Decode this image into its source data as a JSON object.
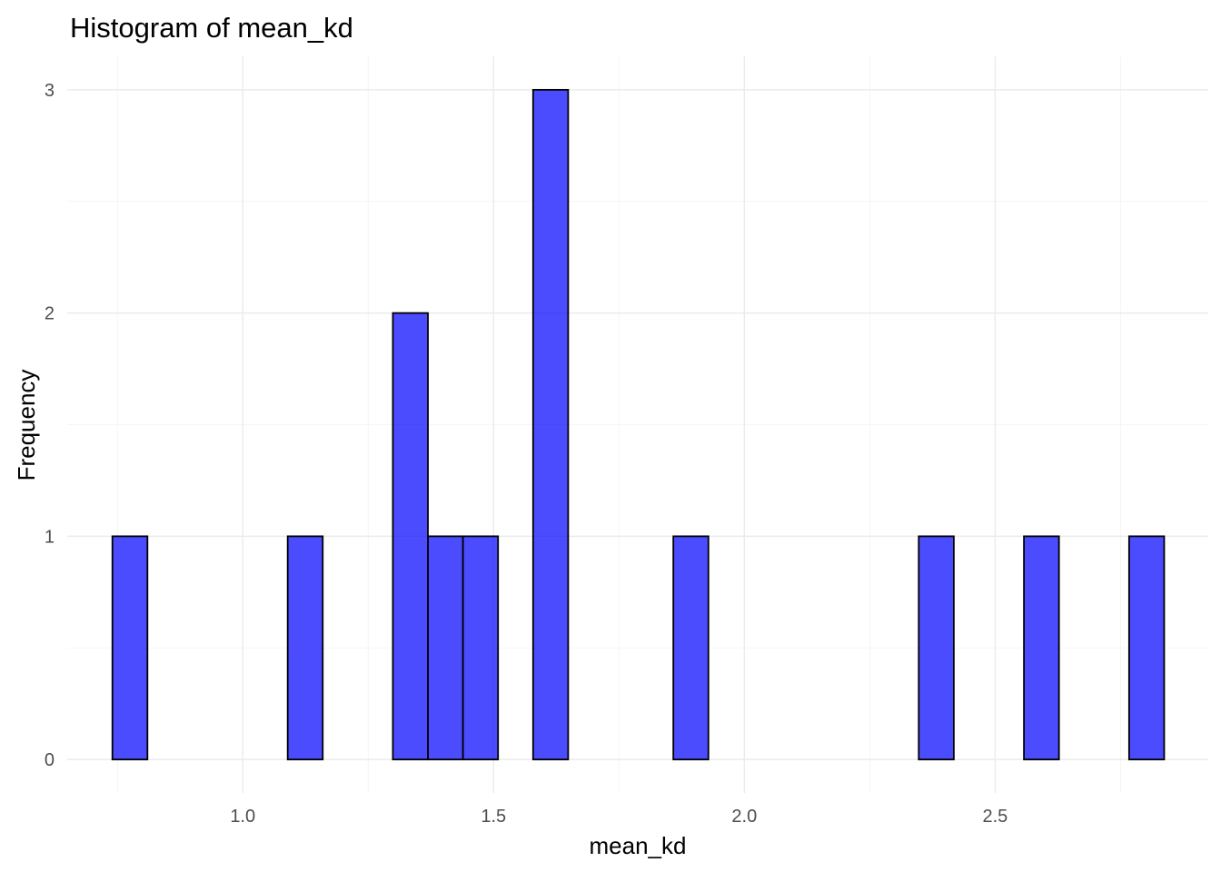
{
  "chart_data": {
    "type": "bar",
    "title": "Histogram of mean_kd",
    "xlabel": "mean_kd",
    "ylabel": "Frequency",
    "bins": 30,
    "bin_width": 0.0699,
    "first_bin_center": 0.775,
    "counts": [
      1,
      0,
      0,
      0,
      0,
      1,
      0,
      0,
      2,
      1,
      1,
      0,
      3,
      0,
      0,
      0,
      1,
      0,
      0,
      0,
      0,
      0,
      0,
      1,
      0,
      0,
      1,
      0,
      0,
      1
    ],
    "x_ticks": [
      1.0,
      1.5,
      2.0,
      2.5
    ],
    "x_tick_labels": [
      "1.0",
      "1.5",
      "2.0",
      "2.5"
    ],
    "y_ticks": [
      0,
      1,
      2,
      3
    ],
    "y_tick_labels": [
      "0",
      "1",
      "2",
      "3"
    ],
    "xlim": [
      0.65,
      2.925
    ],
    "ylim": [
      -0.15,
      3.15
    ],
    "grid": true,
    "legend": "none",
    "colors": {
      "fill": "#0000ff",
      "outline": "#000000"
    }
  }
}
